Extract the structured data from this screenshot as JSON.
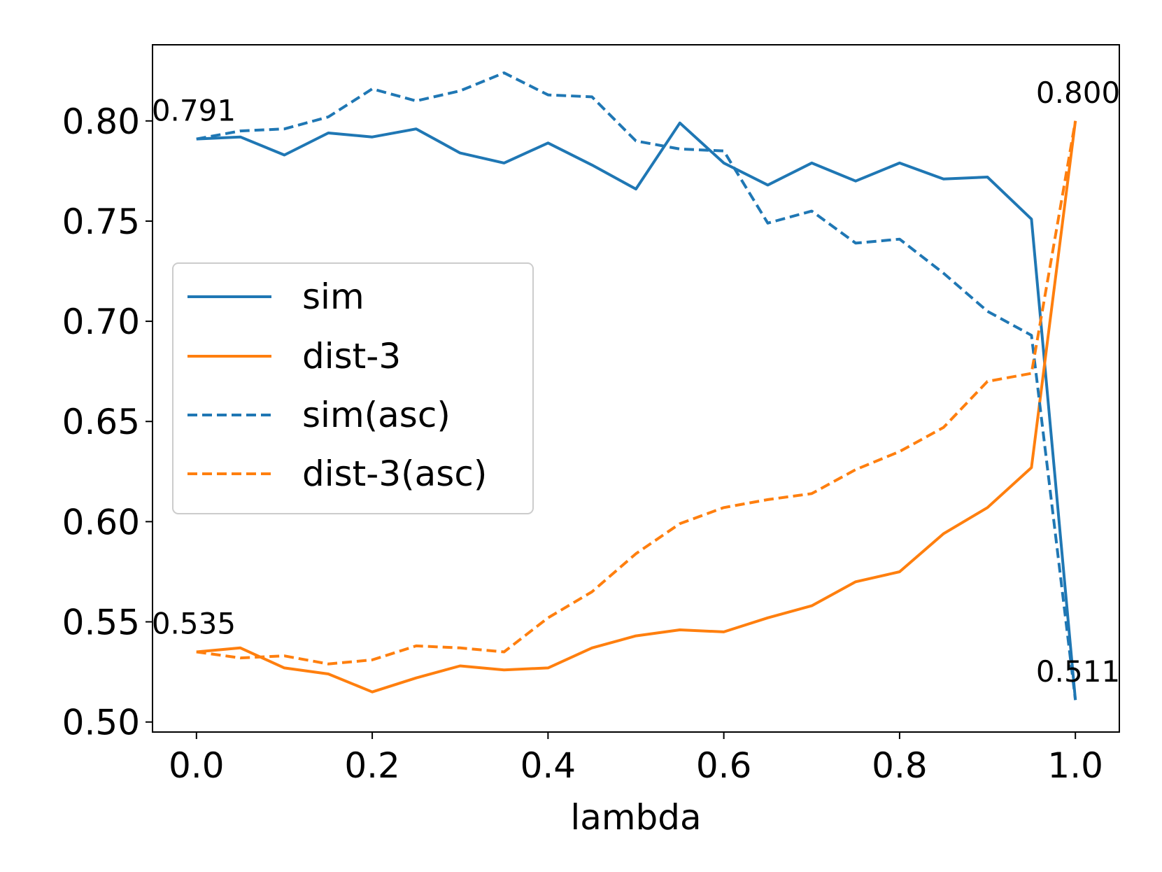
{
  "chart_data": {
    "type": "line",
    "title": "",
    "xlabel": "lambda",
    "ylabel": "",
    "xlim": [
      -0.05,
      1.05
    ],
    "ylim": [
      0.495,
      0.838
    ],
    "xticks": [
      0.0,
      0.2,
      0.4,
      0.6,
      0.8,
      1.0
    ],
    "xtick_labels": [
      "0.0",
      "0.2",
      "0.4",
      "0.6",
      "0.8",
      "1.0"
    ],
    "yticks": [
      0.5,
      0.55,
      0.6,
      0.65,
      0.7,
      0.75,
      0.8
    ],
    "ytick_labels": [
      "0.50",
      "0.55",
      "0.60",
      "0.65",
      "0.70",
      "0.75",
      "0.80"
    ],
    "grid": false,
    "legend_position": "center-left",
    "x": [
      0.0,
      0.05,
      0.1,
      0.15,
      0.2,
      0.25,
      0.3,
      0.35,
      0.4,
      0.45,
      0.5,
      0.55,
      0.6,
      0.65,
      0.7,
      0.75,
      0.8,
      0.85,
      0.9,
      0.95,
      1.0
    ],
    "series": [
      {
        "name": "sim",
        "color": "#1f77b4",
        "style": "solid",
        "values": [
          0.791,
          0.792,
          0.783,
          0.794,
          0.792,
          0.796,
          0.784,
          0.779,
          0.789,
          0.778,
          0.766,
          0.799,
          0.779,
          0.768,
          0.779,
          0.77,
          0.779,
          0.771,
          0.772,
          0.751,
          0.511
        ]
      },
      {
        "name": "dist-3",
        "color": "#ff7f0e",
        "style": "solid",
        "values": [
          0.535,
          0.537,
          0.527,
          0.524,
          0.515,
          0.522,
          0.528,
          0.526,
          0.527,
          0.537,
          0.543,
          0.546,
          0.545,
          0.552,
          0.558,
          0.57,
          0.575,
          0.594,
          0.607,
          0.627,
          0.8
        ]
      },
      {
        "name": "sim(asc)",
        "color": "#1f77b4",
        "style": "dashed",
        "values": [
          0.791,
          0.795,
          0.796,
          0.802,
          0.816,
          0.81,
          0.815,
          0.824,
          0.813,
          0.812,
          0.79,
          0.786,
          0.785,
          0.749,
          0.755,
          0.739,
          0.741,
          0.724,
          0.705,
          0.693,
          0.511
        ]
      },
      {
        "name": "dist-3(asc)",
        "color": "#ff7f0e",
        "style": "dashed",
        "values": [
          0.535,
          0.532,
          0.533,
          0.529,
          0.531,
          0.538,
          0.537,
          0.535,
          0.552,
          0.565,
          0.584,
          0.599,
          0.607,
          0.611,
          0.614,
          0.626,
          0.635,
          0.647,
          0.67,
          0.674,
          0.8
        ]
      }
    ],
    "annotations": [
      {
        "text": "0.791",
        "x": 0.0,
        "y": 0.791,
        "anchor": "start"
      },
      {
        "text": "0.535",
        "x": 0.0,
        "y": 0.535,
        "anchor": "start"
      },
      {
        "text": "0.800",
        "x": 1.0,
        "y": 0.8,
        "anchor": "end"
      },
      {
        "text": "0.511",
        "x": 1.0,
        "y": 0.511,
        "anchor": "end"
      }
    ]
  }
}
